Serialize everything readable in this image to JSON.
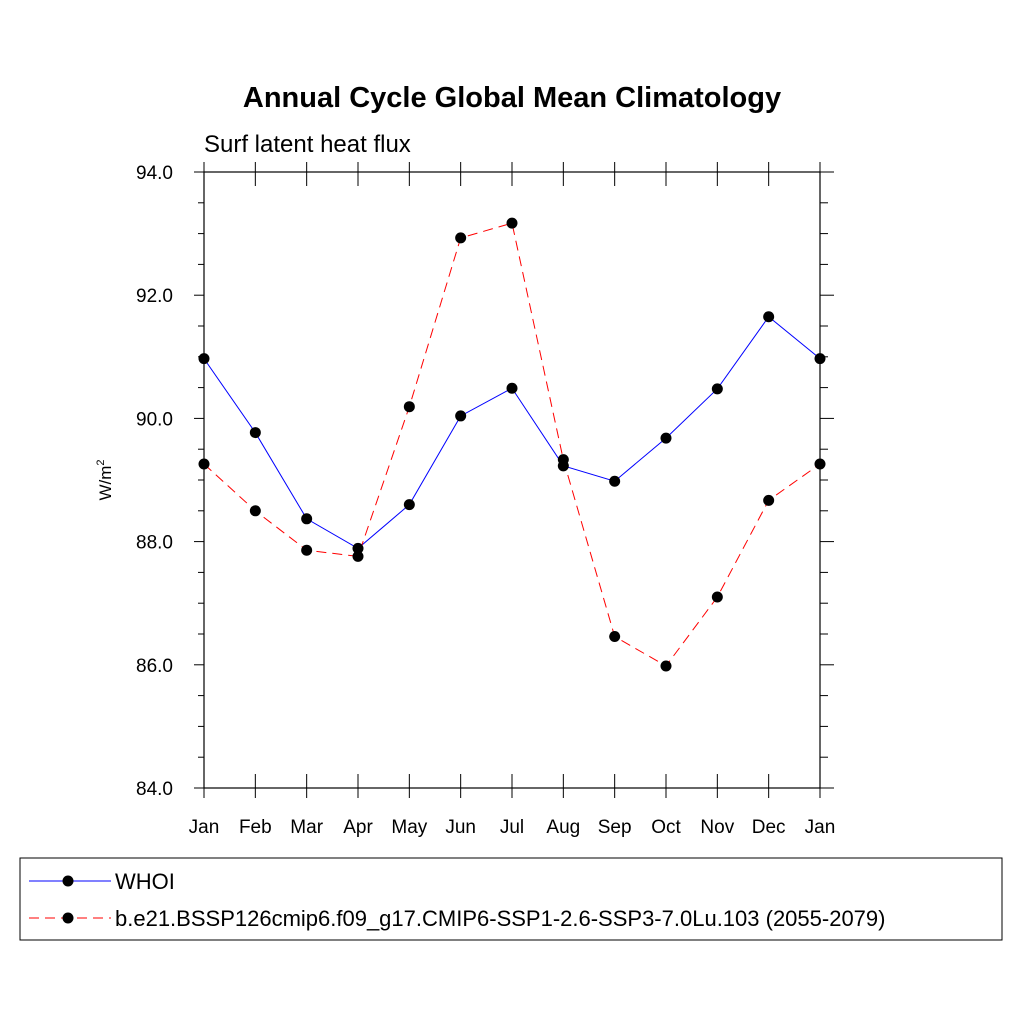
{
  "chart_data": {
    "type": "line",
    "title": "Annual Cycle Global Mean Climatology",
    "subtitle": "Surf latent heat flux",
    "ylabel_main": "W/m",
    "ylabel_sup": "2",
    "xlabel": "",
    "categories": [
      "Jan",
      "Feb",
      "Mar",
      "Apr",
      "May",
      "Jun",
      "Jul",
      "Aug",
      "Sep",
      "Oct",
      "Nov",
      "Dec",
      "Jan"
    ],
    "ylim": [
      84.0,
      94.0
    ],
    "yticks": [
      84.0,
      86.0,
      88.0,
      90.0,
      92.0,
      94.0
    ],
    "ytick_labels": [
      "84.0",
      "86.0",
      "88.0",
      "90.0",
      "92.0",
      "94.0"
    ],
    "grid": false,
    "legend_position": "bottom",
    "series": [
      {
        "name": "WHOI",
        "color": "#0000ff",
        "style": "solid",
        "marker": "filled-circle",
        "values": [
          90.97,
          89.77,
          88.37,
          87.89,
          88.6,
          90.04,
          90.49,
          89.23,
          88.98,
          89.68,
          90.48,
          91.65,
          90.97
        ]
      },
      {
        "name": "b.e21.BSSP126cmip6.f09_g17.CMIP6-SSP1-2.6-SSP3-7.0Lu.103 (2055-2079)",
        "color": "#ff0000",
        "style": "dashed",
        "marker": "filled-circle",
        "values": [
          89.26,
          88.5,
          87.86,
          87.76,
          90.19,
          92.93,
          93.17,
          89.33,
          86.46,
          85.98,
          87.1,
          88.67,
          89.26
        ]
      }
    ]
  }
}
